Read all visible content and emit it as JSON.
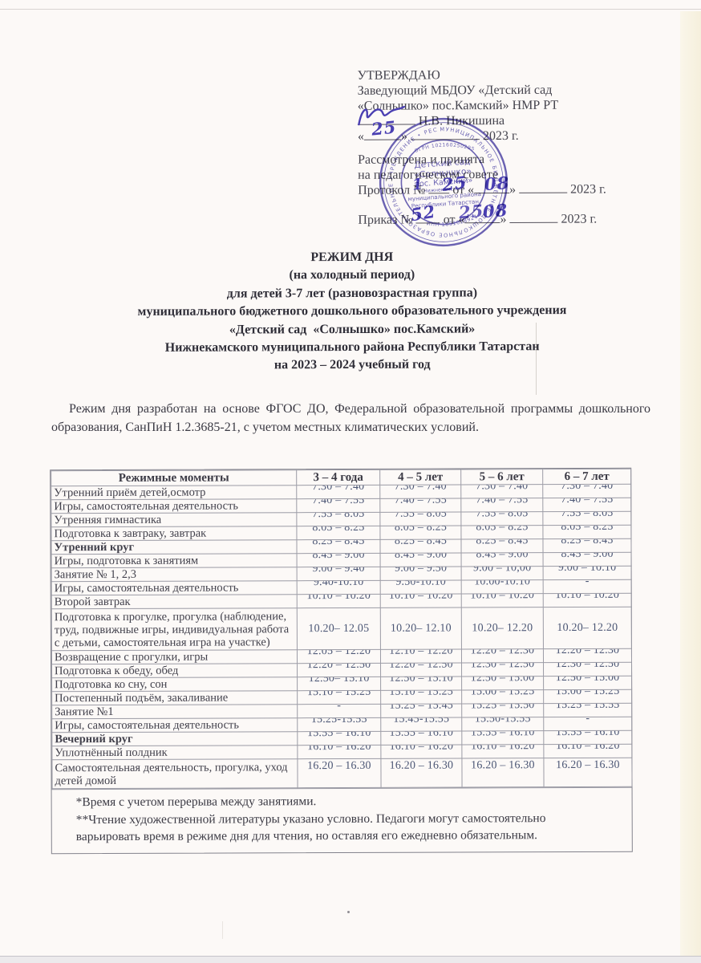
{
  "approval": {
    "heading": "УТВЕРЖДАЮ",
    "line1": "Заведующий МБДОУ «Детский сад",
    "line2": "«Солнышко» пос.Камский» НМР РТ",
    "signer": "Н.В. Никишина",
    "date_line": {
      "q1": "«",
      "q2": "»",
      "year": "2023 г."
    },
    "considered1": "Рассмотрена и принята",
    "considered2": "на педагогическом совете",
    "protocol_line": {
      "label": "Протокол №",
      "ot": "от",
      "q1": "«",
      "q2": "»",
      "year": "2023 г."
    },
    "prikaz_line": {
      "label": "Приказ №",
      "ot": "от",
      "q1": "«",
      "q2": "»",
      "year": "2023 г."
    }
  },
  "handwriting": {
    "color": "#4a3fb2",
    "sign_date_day": "25",
    "protocol_no": "1",
    "protocol_day": "25",
    "protocol_month": "08",
    "prikaz_no": "52",
    "prikaz_day": "25",
    "prikaz_month": "08"
  },
  "stamp": {
    "color": "#4b42a8",
    "ring_text": "МУНИЦИПАЛЬНОЕ БЮДЖЕТНОЕ ДОШКОЛЬНОЕ ОБРАЗОВАТЕЛЬНОЕ УЧРЕЖДЕНИЕ • РЕСПУБЛИКА ТАТАРСТАН •",
    "ogrn": "ОГРН 1021602502955",
    "center_lines": [
      "Детский сад",
      "«Солнышко»",
      "пос. Камский»",
      "Нижнекамского",
      "муниципального района",
      "Республики Татарстан"
    ],
    "inn": "ИНН 1651028921"
  },
  "title": {
    "lines": [
      "РЕЖИМ ДНЯ",
      "(на холодный период)",
      "для детей 3-7 лет (разновозрастная группа)",
      "муниципального бюджетного дошкольного образовательного учреждения",
      "«Детский сад  «Солнышко» пос.Камский»",
      "Нижнекамского муниципального района Республики Татарстан",
      "на 2023 – 2024 учебный год"
    ]
  },
  "intro": "Режим дня разработан на основе ФГОС ДО, Федеральной образовательной программы дошкольного образования, СанПиН 1.2.3685-21, с учетом местных климатических условий.",
  "table": {
    "headers": [
      "Режимные моменты",
      "3 – 4 года",
      "4 – 5 лет",
      "5 – 6 лет",
      "6 – 7 лет"
    ],
    "rows": [
      {
        "label": "Утренний приём детей,осмотр",
        "times": [
          "7.30 – 7.40",
          "7.30 – 7.40",
          "7.30 – 7.40",
          "7.30 – 7.40"
        ]
      },
      {
        "label": "Игры, самостоятельная деятельность",
        "times": [
          "7.40 – 7.55",
          "7.40 – 7.55",
          "7.40 – 7.55",
          "7.40 – 7.55"
        ]
      },
      {
        "label": "Утренняя гимнастика",
        "times": [
          "7.55 – 8.05",
          "7.55 – 8.05",
          "7.55 – 8.05",
          "7.55 – 8.05"
        ]
      },
      {
        "label": "Подготовка к завтраку, завтрак",
        "times": [
          "8.05 – 8.25",
          "8.05 – 8.25",
          "8.05 – 8.25",
          "8.05 – 8.25"
        ]
      },
      {
        "label": "Утренний круг",
        "bold": true,
        "times": [
          "8.25 – 8.45",
          "8.25 – 8.45",
          "8.25 – 8.45",
          "8.25 – 8.45"
        ]
      },
      {
        "label": "Игры, подготовка к занятиям",
        "times": [
          "8.45 – 9.00",
          "8.45 – 9.00",
          "8.45 – 9.00",
          "8.45 – 9.00"
        ]
      },
      {
        "label": "Занятие № 1, 2,3",
        "times": [
          "9.00 – 9.40",
          "9.00 – 9.50",
          "9.00 – 10,00",
          "9.00 – 10.10"
        ]
      },
      {
        "label": "Игры, самостоятельная деятельность",
        "times": [
          "9.40-10.10",
          "9.50-10.10",
          "10.00-10.10",
          "-"
        ]
      },
      {
        "label": "Второй завтрак",
        "times": [
          "10.10 – 10.20",
          "10.10 – 10.20",
          "10.10 – 10.20",
          "10.10 – 10.20"
        ]
      },
      {
        "label": "Подготовка к прогулке, прогулка (наблюдение, труд, подвижные игры, индивидуальная работа с детьми, самостоятельная игра на участке)",
        "tall": 3,
        "times": [
          "10.20– 12.05",
          "10.20– 12.10",
          "10.20– 12.20",
          "10.20– 12.20"
        ]
      },
      {
        "label": "Возвращение с прогулки, игры",
        "times": [
          "12.05 – 12.20",
          "12.10 – 12.20",
          "12.20 – 12.30",
          "12.20 – 12.30"
        ]
      },
      {
        "label": "Подготовка к обеду, обед",
        "times": [
          "12.20 – 12.50",
          "12.20 – 12.50",
          "12.30 – 12.50",
          "12.30 – 12.50"
        ]
      },
      {
        "label": "Подготовка ко сну, сон",
        "times": [
          "12.50– 15.10",
          "12.50 – 15.10",
          "12.50 – 15.00",
          "12.50 – 15.00"
        ]
      },
      {
        "label": "Постепенный подъём, закаливание",
        "times": [
          "15.10 – 15.25",
          "15.10 – 15.25",
          "15.00 – 15.25",
          "15.00 – 15.25"
        ]
      },
      {
        "label": "Занятие №1",
        "times": [
          "-",
          "15.25 – 15.45",
          "15.25 – 15.50",
          "15.25 – 15.55"
        ]
      },
      {
        "label": "Игры, самостоятельная деятельность",
        "times": [
          "15.25-15.55",
          "15.45-15.55",
          "15.50-15.55",
          "-"
        ]
      },
      {
        "label": "Вечерний круг",
        "bold": true,
        "times": [
          "15.55 – 16.10",
          "15.55 – 16.10",
          "15.55 – 16.10",
          "15.55 – 16.10"
        ]
      },
      {
        "label": "Уплотнённый полдник",
        "times": [
          "16.10 – 16.20",
          "16.10 – 16.20",
          "16.10 – 16.20",
          "16.10 – 16.20"
        ]
      },
      {
        "label": "Самостоятельная деятельность, прогулка, уход детей домой",
        "tall": 2,
        "times": [
          "16.20 – 16.30",
          "16.20 – 16.30",
          "16.20 – 16.30",
          "16.20 – 16.30"
        ]
      }
    ],
    "footnotes": [
      "*Время с учетом перерыва между занятиями.",
      "**Чтение художественной литературы указано условно. Педагоги могут самостоятельно",
      "варьировать время в режиме дня для чтения, но оставляя его ежедневно обязательным."
    ]
  }
}
